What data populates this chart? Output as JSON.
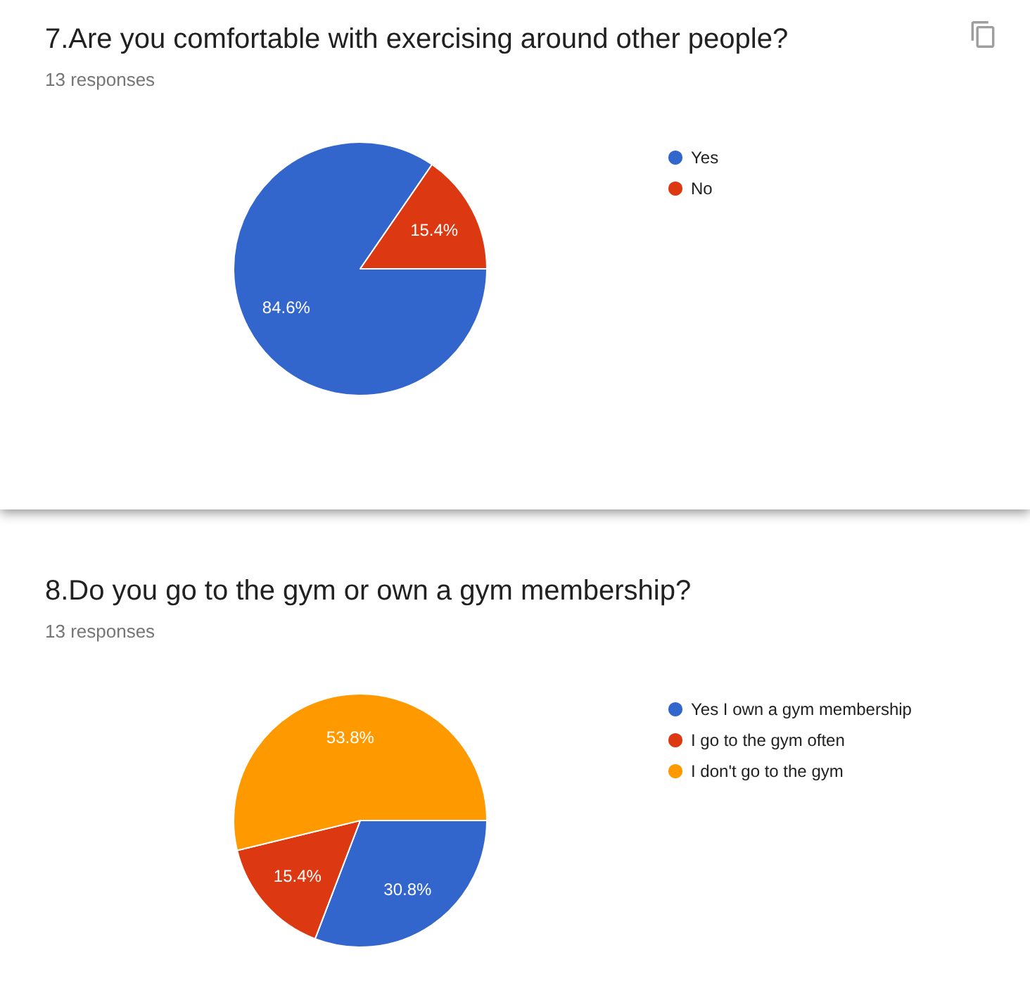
{
  "chart_data": [
    {
      "type": "pie",
      "title": "7.Are you comfortable with exercising around other people?",
      "subtitle": "13 responses",
      "categories": [
        "Yes",
        "No"
      ],
      "values": [
        84.6,
        15.4
      ],
      "colors": [
        "#3366cc",
        "#dc3912"
      ],
      "value_labels": [
        "84.6%",
        "15.4%"
      ],
      "legend": "right"
    },
    {
      "type": "pie",
      "title": "8.Do you go to the gym or own a gym membership?",
      "subtitle": "13 responses",
      "categories": [
        "Yes I own a gym membership",
        "I go to the gym often",
        "I don't go to the gym"
      ],
      "values": [
        30.8,
        15.4,
        53.8
      ],
      "colors": [
        "#3366cc",
        "#dc3912",
        "#ff9900"
      ],
      "value_labels": [
        "30.8%",
        "15.4%",
        "53.8%"
      ],
      "legend": "right"
    }
  ]
}
